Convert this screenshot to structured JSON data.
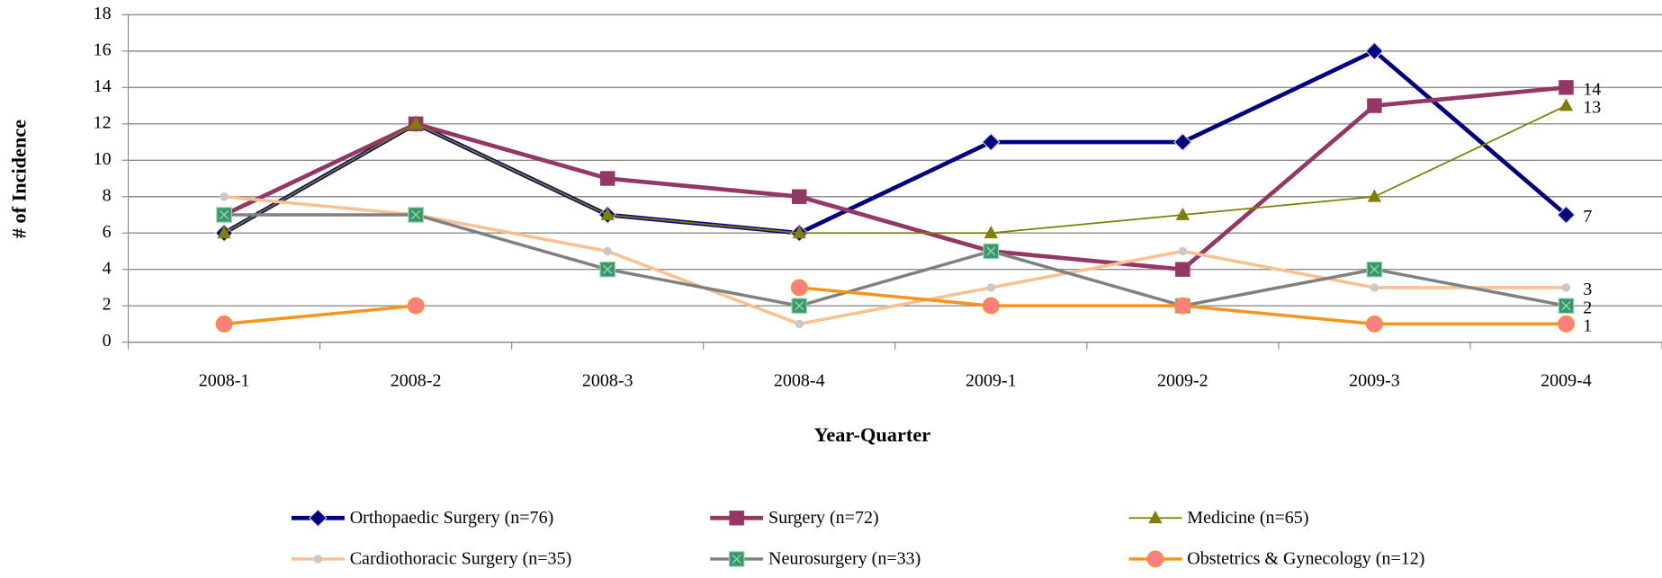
{
  "chart_data": {
    "type": "line",
    "x_label": "Year-Quarter",
    "y_label": "# of Incidence",
    "categories": [
      "2008-1",
      "2008-2",
      "2008-3",
      "2008-4",
      "2009-1",
      "2009-2",
      "2009-3",
      "2009-4"
    ],
    "series": [
      {
        "name": "Orthopaedic Surgery (n=76)",
        "color": "#000080",
        "marker": "diamond",
        "marker_color": "#000080",
        "width": 4,
        "values": [
          6,
          12,
          7,
          6,
          11,
          11,
          16,
          7
        ]
      },
      {
        "name": "Surgery (n=72)",
        "color": "#953765",
        "marker": "square",
        "marker_color": "#953765",
        "width": 4,
        "values": [
          7,
          12,
          9,
          8,
          5,
          4,
          13,
          14
        ]
      },
      {
        "name": "Medicine (n=65)",
        "color": "#7f7f00",
        "marker": "triangle",
        "marker_color": "#7f7f00",
        "width": 1.5,
        "values": [
          6,
          12,
          7,
          6,
          6,
          7,
          8,
          13
        ]
      },
      {
        "name": "Cardiothoracic Surgery (n=35)",
        "color": "#fac090",
        "marker": "circle-small",
        "marker_color": "#c8c8c8",
        "width": 3,
        "values": [
          8,
          7,
          5,
          1,
          3,
          5,
          3,
          3
        ]
      },
      {
        "name": "Neurosurgery (n=33)",
        "color": "#808080",
        "marker": "square-x",
        "marker_color": "#339966",
        "width": 3,
        "values": [
          7,
          7,
          4,
          2,
          5,
          2,
          4,
          2
        ]
      },
      {
        "name": "Obstetrics & Gynecology (n=12)",
        "color": "#f7941d",
        "marker": "circle",
        "marker_color": "#ff7f7f",
        "width": 3,
        "values": [
          1,
          2,
          null,
          3,
          2,
          2,
          1,
          1
        ]
      }
    ],
    "ylim": [
      0,
      18
    ],
    "yticks": [
      0,
      2,
      4,
      6,
      8,
      10,
      12,
      14,
      16,
      18
    ],
    "grid": true,
    "legend": "bottom",
    "end_labels": true
  }
}
